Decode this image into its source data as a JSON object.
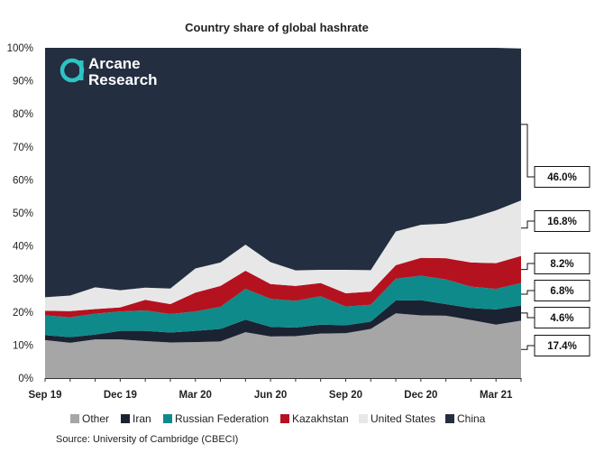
{
  "chart_data": {
    "type": "area",
    "stacked": true,
    "title": "Country share of global hashrate",
    "x": [
      "Sep 19",
      "Oct 19",
      "Nov 19",
      "Dec 19",
      "Jan 20",
      "Feb 20",
      "Mar 20",
      "Apr 20",
      "May 20",
      "Jun 20",
      "Jul 20",
      "Aug 20",
      "Sep 20",
      "Oct 20",
      "Nov 20",
      "Dec 20",
      "Jan 21",
      "Feb 21",
      "Mar 21",
      "Apr 21"
    ],
    "x_tick_labels": [
      {
        "index": 0,
        "label": "Sep 19"
      },
      {
        "index": 3,
        "label": "Dec 19"
      },
      {
        "index": 6,
        "label": "Mar 20"
      },
      {
        "index": 9,
        "label": "Jun 20"
      },
      {
        "index": 12,
        "label": "Sep 20"
      },
      {
        "index": 15,
        "label": "Dec 20"
      },
      {
        "index": 18,
        "label": "Mar 21"
      }
    ],
    "ylim": [
      0,
      100
    ],
    "yticks": [
      "0%",
      "10%",
      "20%",
      "30%",
      "40%",
      "50%",
      "60%",
      "70%",
      "80%",
      "90%",
      "100%"
    ],
    "series": [
      {
        "name": "Other",
        "color": "#a6a6a6",
        "values": [
          11.5,
          10.7,
          11.7,
          11.7,
          11.2,
          10.8,
          10.9,
          11.1,
          13.9,
          12.6,
          12.7,
          13.5,
          13.6,
          14.9,
          19.6,
          19.0,
          18.9,
          17.6,
          16.2,
          17.4
        ]
      },
      {
        "name": "Iran",
        "color": "#1b2333",
        "values": [
          1.5,
          1.7,
          1.5,
          2.6,
          3.1,
          3.0,
          3.4,
          3.8,
          3.8,
          2.9,
          2.6,
          2.7,
          2.4,
          2.2,
          3.9,
          4.6,
          3.5,
          3.6,
          4.6,
          4.6
        ]
      },
      {
        "name": "Russian Federation",
        "color": "#0e8a8a",
        "values": [
          6.0,
          6.0,
          6.3,
          5.9,
          6.2,
          5.6,
          5.9,
          6.7,
          9.3,
          8.5,
          8.1,
          8.6,
          5.7,
          5.1,
          6.6,
          7.4,
          7.5,
          6.5,
          6.2,
          6.8
        ]
      },
      {
        "name": "Kazakhstan",
        "color": "#b5121f",
        "values": [
          1.4,
          1.9,
          1.4,
          1.2,
          3.2,
          3.0,
          5.7,
          6.3,
          5.5,
          4.5,
          4.5,
          4.0,
          4.0,
          4.0,
          4.1,
          5.4,
          6.4,
          7.3,
          7.8,
          8.2
        ]
      },
      {
        "name": "United States",
        "color": "#e7e7e7",
        "values": [
          4.1,
          4.7,
          6.6,
          5.2,
          3.7,
          4.7,
          7.3,
          7.1,
          7.9,
          6.6,
          4.7,
          4.0,
          7.1,
          6.5,
          10.2,
          10.0,
          10.5,
          13.4,
          16.0,
          16.8
        ]
      },
      {
        "name": "China",
        "color": "#232e40",
        "values": [
          75.5,
          75.0,
          72.5,
          73.4,
          72.6,
          72.9,
          66.8,
          65.0,
          59.6,
          64.9,
          67.4,
          67.2,
          67.2,
          67.3,
          55.6,
          53.6,
          53.2,
          51.6,
          49.2,
          46.0
        ]
      }
    ],
    "callouts": [
      {
        "series": "China",
        "label": "46.0%"
      },
      {
        "series": "United States",
        "label": "16.8%"
      },
      {
        "series": "Kazakhstan",
        "label": "8.2%"
      },
      {
        "series": "Russian Federation",
        "label": "6.8%"
      },
      {
        "series": "Iran",
        "label": "4.6%"
      },
      {
        "series": "Other",
        "label": "17.4%"
      }
    ],
    "legend_position": "bottom",
    "grid": false
  },
  "logo": {
    "line1": "Arcane",
    "line2": "Research"
  },
  "source_text": "Source: University of Cambridge (CBECI)"
}
